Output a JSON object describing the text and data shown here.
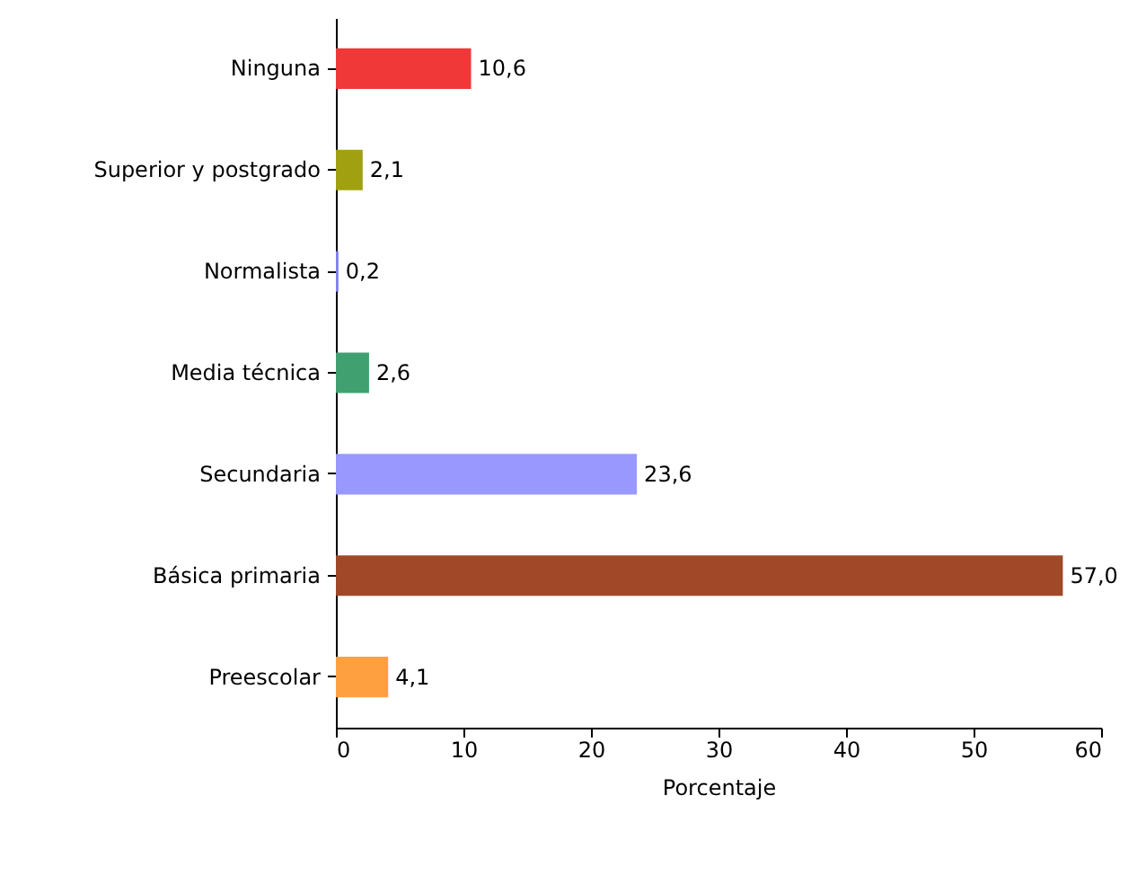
{
  "chart_data": {
    "type": "bar",
    "orientation": "horizontal",
    "xlabel": "Porcentaje",
    "categories": [
      "Ninguna",
      "Superior y postgrado",
      "Normalista",
      "Media técnica",
      "Secundaria",
      "Básica primaria",
      "Preescolar"
    ],
    "values": [
      10.6,
      2.1,
      0.2,
      2.6,
      23.6,
      57.0,
      4.1
    ],
    "colors": [
      "#f03838",
      "#a0a010",
      "#8080f0",
      "#40a070",
      "#9898ff",
      "#a04828",
      "#ffa040"
    ],
    "value_labels": [
      "10,6",
      "2,1",
      "0,2",
      "2,6",
      "23,6",
      "57,0",
      "4,1"
    ],
    "xlim": [
      0,
      60
    ],
    "xticks": [
      0,
      10,
      20,
      30,
      40,
      50,
      60
    ]
  }
}
